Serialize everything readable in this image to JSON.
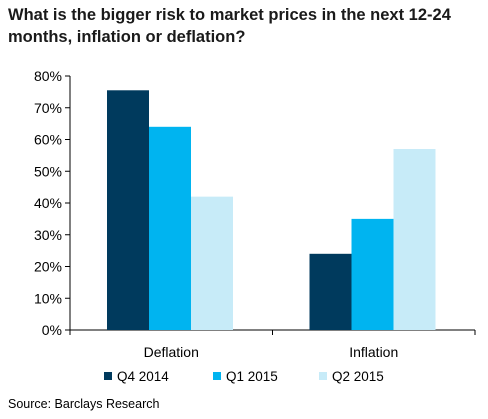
{
  "chart_data": {
    "type": "bar",
    "title": "What is the bigger risk to market prices in the next 12-24 months, inflation or deflation?",
    "categories": [
      "Deflation",
      "Inflation"
    ],
    "series": [
      {
        "name": "Q4 2014",
        "color": "#003a5d",
        "values": [
          75.5,
          24
        ]
      },
      {
        "name": "Q1 2015",
        "color": "#00b4f0",
        "values": [
          64,
          35
        ]
      },
      {
        "name": "Q2 2015",
        "color": "#c7ebf8",
        "values": [
          42,
          57
        ]
      }
    ],
    "ylim": [
      0,
      80
    ],
    "yticks": [
      "0%",
      "10%",
      "20%",
      "30%",
      "40%",
      "50%",
      "60%",
      "70%",
      "80%"
    ],
    "xlabel": "",
    "ylabel": "",
    "grid": false,
    "legend": "bottom"
  },
  "source": "Source: Barclays Research"
}
